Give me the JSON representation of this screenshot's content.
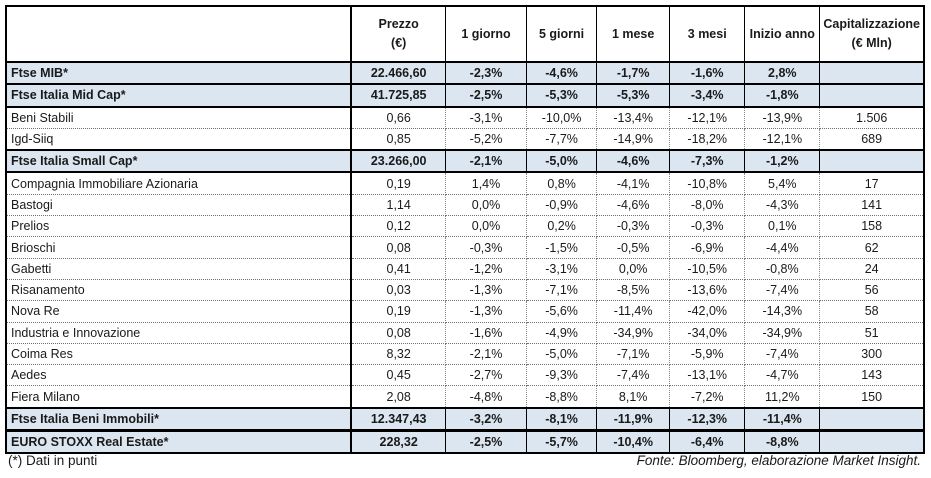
{
  "table": {
    "columns": {
      "name": "",
      "prezzo": "Prezzo\n(€)",
      "g1": "1 giorno",
      "g5": "5 giorni",
      "m1": "1 mese",
      "m3": "3 mesi",
      "inizio": "Inizio anno",
      "cap": "Capitalizzazione\n(€ Mln)"
    },
    "rows": [
      {
        "type": "index",
        "name": "Ftse MIB*",
        "values": [
          "22.466,60",
          "-2,3%",
          "-4,6%",
          "-1,7%",
          "-1,6%",
          "2,8%",
          ""
        ]
      },
      {
        "type": "index",
        "name": "Ftse Italia Mid Cap*",
        "values": [
          "41.725,85",
          "-2,5%",
          "-5,3%",
          "-5,3%",
          "-3,4%",
          "-1,8%",
          ""
        ]
      },
      {
        "type": "stock",
        "name": "Beni Stabili",
        "values": [
          "0,66",
          "-3,1%",
          "-10,0%",
          "-13,4%",
          "-12,1%",
          "-13,9%",
          "1.506"
        ]
      },
      {
        "type": "stock",
        "name": "Igd-Siiq",
        "values": [
          "0,85",
          "-5,2%",
          "-7,7%",
          "-14,9%",
          "-18,2%",
          "-12,1%",
          "689"
        ]
      },
      {
        "type": "index",
        "name": "Ftse Italia Small Cap*",
        "values": [
          "23.266,00",
          "-2,1%",
          "-5,0%",
          "-4,6%",
          "-7,3%",
          "-1,2%",
          ""
        ]
      },
      {
        "type": "stock",
        "name": "Compagnia Immobiliare Azionaria",
        "values": [
          "0,19",
          "1,4%",
          "0,8%",
          "-4,1%",
          "-10,8%",
          "5,4%",
          "17"
        ]
      },
      {
        "type": "stock",
        "name": "Bastogi",
        "values": [
          "1,14",
          "0,0%",
          "-0,9%",
          "-4,6%",
          "-8,0%",
          "-4,3%",
          "141"
        ]
      },
      {
        "type": "stock",
        "name": "Prelios",
        "values": [
          "0,12",
          "0,0%",
          "0,2%",
          "-0,3%",
          "-0,3%",
          "0,1%",
          "158"
        ]
      },
      {
        "type": "stock",
        "name": "Brioschi",
        "values": [
          "0,08",
          "-0,3%",
          "-1,5%",
          "-0,5%",
          "-6,9%",
          "-4,4%",
          "62"
        ]
      },
      {
        "type": "stock",
        "name": "Gabetti",
        "values": [
          "0,41",
          "-1,2%",
          "-3,1%",
          "0,0%",
          "-10,5%",
          "-0,8%",
          "24"
        ]
      },
      {
        "type": "stock",
        "name": "Risanamento",
        "values": [
          "0,03",
          "-1,3%",
          "-7,1%",
          "-8,5%",
          "-13,6%",
          "-7,4%",
          "56"
        ]
      },
      {
        "type": "stock",
        "name": "Nova Re",
        "values": [
          "0,19",
          "-1,3%",
          "-5,6%",
          "-11,4%",
          "-42,0%",
          "-14,3%",
          "58"
        ]
      },
      {
        "type": "stock",
        "name": "Industria e Innovazione",
        "values": [
          "0,08",
          "-1,6%",
          "-4,9%",
          "-34,9%",
          "-34,0%",
          "-34,9%",
          "51"
        ]
      },
      {
        "type": "stock",
        "name": "Coima Res",
        "values": [
          "8,32",
          "-2,1%",
          "-5,0%",
          "-7,1%",
          "-5,9%",
          "-7,4%",
          "300"
        ]
      },
      {
        "type": "stock",
        "name": "Aedes",
        "values": [
          "0,45",
          "-2,7%",
          "-9,3%",
          "-7,4%",
          "-13,1%",
          "-4,7%",
          "143"
        ]
      },
      {
        "type": "stock",
        "name": "Fiera Milano",
        "values": [
          "2,08",
          "-4,8%",
          "-8,8%",
          "8,1%",
          "-7,2%",
          "11,2%",
          "150"
        ]
      },
      {
        "type": "index",
        "name": "Ftse Italia Beni Immobili*",
        "values": [
          "12.347,43",
          "-3,2%",
          "-8,1%",
          "-11,9%",
          "-12,3%",
          "-11,4%",
          ""
        ]
      }
    ],
    "euro_row": {
      "type": "index",
      "name": "EURO STOXX Real Estate*",
      "values": [
        "228,32",
        "-2,5%",
        "-5,7%",
        "-10,4%",
        "-6,4%",
        "-8,8%",
        ""
      ]
    }
  },
  "footer": {
    "note": "(*) Dati in punti",
    "source": "Fonte: Bloomberg, elaborazione Market Insight."
  },
  "colors": {
    "index_row_bg": "#dce6f1",
    "border": "#000000",
    "text": "#1a1a1a"
  }
}
